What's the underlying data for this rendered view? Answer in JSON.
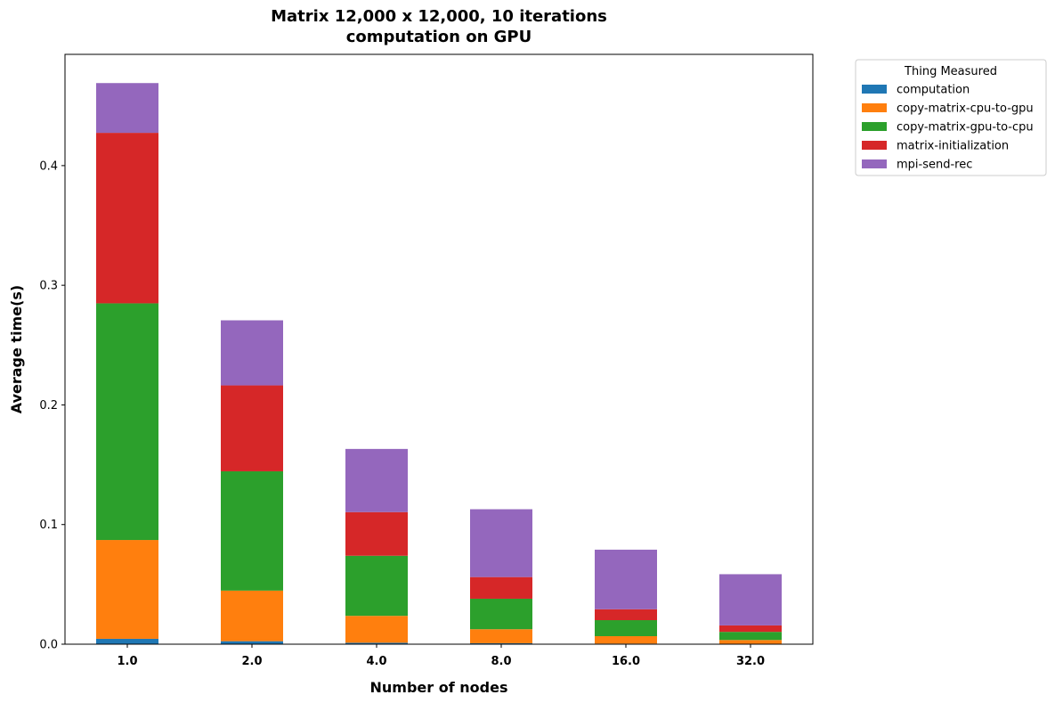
{
  "chart_data": {
    "type": "bar",
    "stacked": true,
    "title_lines": [
      "Matrix 12,000 x 12,000, 10 iterations",
      "computation on GPU"
    ],
    "xlabel": "Number of nodes",
    "ylabel": "Average time(s)",
    "categories": [
      "1.0",
      "2.0",
      "4.0",
      "8.0",
      "16.0",
      "32.0"
    ],
    "ylim": [
      0,
      0.493
    ],
    "yticks": [
      "0.0",
      "0.1",
      "0.2",
      "0.3",
      "0.4"
    ],
    "ytick_values": [
      0,
      0.1,
      0.2,
      0.3,
      0.4
    ],
    "legend": {
      "title": "Thing Measured",
      "placement": "outside-top-right"
    },
    "series": [
      {
        "name": "computation",
        "color": "#1f77b4",
        "values": [
          0.0045,
          0.0025,
          0.0012,
          0.0008,
          0.0005,
          0.0004
        ]
      },
      {
        "name": "copy-matrix-cpu-to-gpu",
        "color": "#ff7f0e",
        "values": [
          0.0826,
          0.0423,
          0.0225,
          0.0117,
          0.0062,
          0.0031
        ]
      },
      {
        "name": "copy-matrix-gpu-to-cpu",
        "color": "#2ca02c",
        "values": [
          0.1978,
          0.0997,
          0.0502,
          0.0255,
          0.0134,
          0.0068
        ]
      },
      {
        "name": "matrix-initialization",
        "color": "#d62728",
        "values": [
          0.1425,
          0.0718,
          0.0365,
          0.0181,
          0.0091,
          0.0054
        ]
      },
      {
        "name": "mpi-send-rec",
        "color": "#9467bd",
        "values": [
          0.0416,
          0.0544,
          0.0528,
          0.0567,
          0.0498,
          0.0428
        ]
      }
    ]
  }
}
